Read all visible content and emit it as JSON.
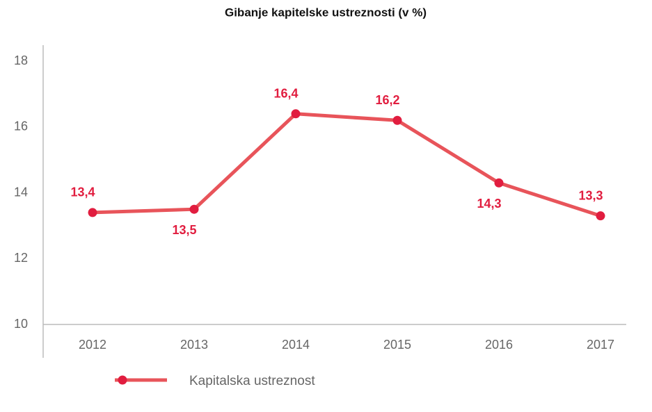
{
  "chart_data": {
    "type": "line",
    "title": "Gibanje kapitelske ustreznosti (v %)",
    "categories": [
      "2012",
      "2013",
      "2014",
      "2015",
      "2016",
      "2017"
    ],
    "series": [
      {
        "name": "Kapitalska ustreznost",
        "color": "#e8545a",
        "marker_color": "#e11d3f",
        "values": [
          13.4,
          13.5,
          16.4,
          16.2,
          14.3,
          13.3
        ],
        "value_labels": [
          "13,4",
          "13,5",
          "16,4",
          "16,2",
          "14,3",
          "13,3"
        ]
      }
    ],
    "ylim": [
      10,
      18
    ],
    "yticks": [
      10,
      12,
      14,
      16,
      18
    ],
    "grid": false
  }
}
